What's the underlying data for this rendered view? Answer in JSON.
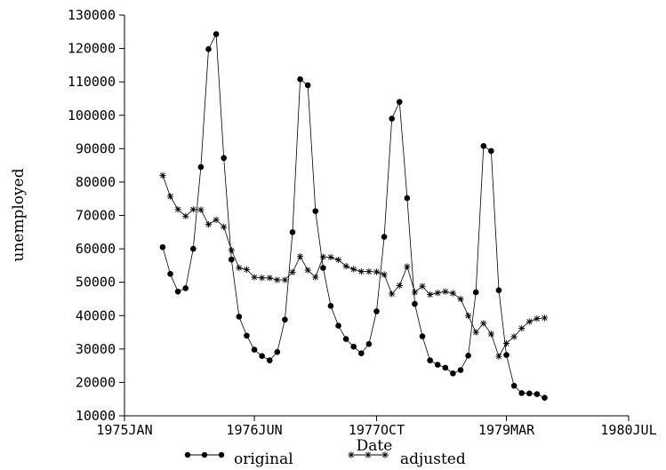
{
  "chart_data": {
    "type": "line",
    "title": "",
    "xlabel": "Date",
    "ylabel": "unemployed",
    "x_range": [
      "1975-01-01",
      "1980-07-01"
    ],
    "x_ticks": [
      {
        "date": "1975-01-01",
        "label": "1975JAN"
      },
      {
        "date": "1976-06-01",
        "label": "1976JUN"
      },
      {
        "date": "1977-10-01",
        "label": "1977OCT"
      },
      {
        "date": "1979-03-01",
        "label": "1979MAR"
      },
      {
        "date": "1980-07-01",
        "label": "1980JUL"
      }
    ],
    "ylim": [
      10000,
      130000
    ],
    "y_ticks": [
      10000,
      20000,
      30000,
      40000,
      50000,
      60000,
      70000,
      80000,
      90000,
      100000,
      110000,
      120000,
      130000
    ],
    "grid": false,
    "legend_position": "bottom",
    "dates": [
      "1975-06",
      "1975-07",
      "1975-08",
      "1975-09",
      "1975-10",
      "1975-11",
      "1975-12",
      "1976-01",
      "1976-02",
      "1976-03",
      "1976-04",
      "1976-05",
      "1976-06",
      "1976-07",
      "1976-08",
      "1976-09",
      "1976-10",
      "1976-11",
      "1976-12",
      "1977-01",
      "1977-02",
      "1977-03",
      "1977-04",
      "1977-05",
      "1977-06",
      "1977-07",
      "1977-08",
      "1977-09",
      "1977-10",
      "1977-11",
      "1977-12",
      "1978-01",
      "1978-02",
      "1978-03",
      "1978-04",
      "1978-05",
      "1978-06",
      "1978-07",
      "1978-08",
      "1978-09",
      "1978-10",
      "1978-11",
      "1978-12",
      "1979-01",
      "1979-02",
      "1979-03",
      "1979-04",
      "1979-05",
      "1979-06",
      "1979-07",
      "1979-08"
    ],
    "series": [
      {
        "name": "original",
        "marker": "dot",
        "values": [
          60500,
          52500,
          47200,
          48200,
          60000,
          84500,
          119800,
          124300,
          87200,
          56800,
          39700,
          34000,
          29800,
          27900,
          26600,
          29100,
          38800,
          65000,
          110800,
          109000,
          71300,
          54300,
          42900,
          37000,
          33000,
          30700,
          28700,
          31500,
          41300,
          63600,
          99000,
          104000,
          75200,
          43500,
          33800,
          26600,
          25300,
          24400,
          22700,
          23700,
          28000,
          47000,
          90800,
          89300,
          47600,
          28200,
          19000,
          16800,
          16700,
          16500,
          15400
        ]
      },
      {
        "name": "adjusted",
        "marker": "star",
        "values": [
          82000,
          75700,
          71800,
          69800,
          71800,
          71700,
          67300,
          68700,
          66600,
          59600,
          54300,
          53800,
          51500,
          51300,
          51300,
          50700,
          50700,
          53000,
          57700,
          53600,
          51500,
          57600,
          57500,
          56700,
          54800,
          53900,
          53200,
          53200,
          53100,
          52300,
          46500,
          49000,
          54700,
          47000,
          48800,
          46300,
          46800,
          47200,
          46700,
          45000,
          40000,
          35000,
          37700,
          34500,
          27800,
          31700,
          33700,
          36200,
          38200,
          39100,
          39300
        ]
      }
    ]
  }
}
